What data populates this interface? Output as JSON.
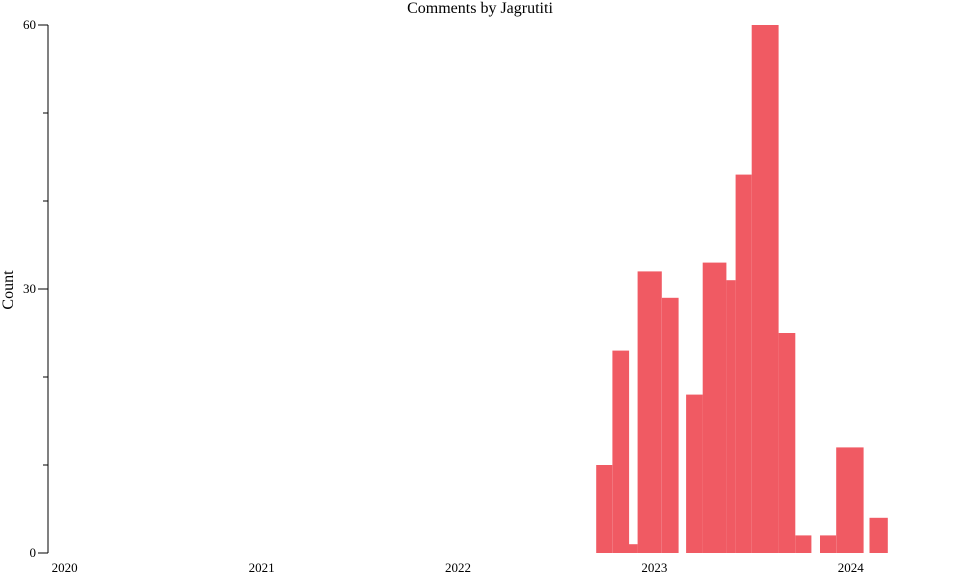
{
  "chart_data": {
    "type": "bar",
    "title": "Comments by Jagrutiti",
    "xlabel": "",
    "ylabel": "Count",
    "x_ticks": [
      "2020",
      "2021",
      "2022",
      "2023",
      "2024"
    ],
    "x_tick_dates": [
      "2020-01-01",
      "2021-01-01",
      "2022-01-01",
      "2023-01-01",
      "2024-01-01"
    ],
    "y_ticks": [
      0,
      30,
      60
    ],
    "ylim": [
      0,
      60
    ],
    "xlim": [
      "2019-12-01",
      "2024-06-15"
    ],
    "grid": false,
    "color": "#f05a63",
    "bins": [
      {
        "start": "2022-09-15",
        "end": "2022-10-15",
        "value": 10
      },
      {
        "start": "2022-10-15",
        "end": "2022-11-15",
        "value": 23
      },
      {
        "start": "2022-11-15",
        "end": "2022-12-01",
        "value": 1
      },
      {
        "start": "2022-12-01",
        "end": "2023-01-15",
        "value": 32
      },
      {
        "start": "2023-01-15",
        "end": "2023-02-15",
        "value": 29
      },
      {
        "start": "2023-03-01",
        "end": "2023-04-01",
        "value": 18
      },
      {
        "start": "2023-04-01",
        "end": "2023-05-15",
        "value": 33
      },
      {
        "start": "2023-05-15",
        "end": "2023-06-01",
        "value": 31
      },
      {
        "start": "2023-06-01",
        "end": "2023-07-01",
        "value": 43
      },
      {
        "start": "2023-07-01",
        "end": "2023-08-20",
        "value": 60
      },
      {
        "start": "2023-08-20",
        "end": "2023-09-20",
        "value": 25
      },
      {
        "start": "2023-09-20",
        "end": "2023-10-20",
        "value": 2
      },
      {
        "start": "2023-11-05",
        "end": "2023-12-05",
        "value": 2
      },
      {
        "start": "2023-12-05",
        "end": "2024-01-25",
        "value": 12
      },
      {
        "start": "2024-02-05",
        "end": "2024-03-10",
        "value": 4
      }
    ]
  }
}
